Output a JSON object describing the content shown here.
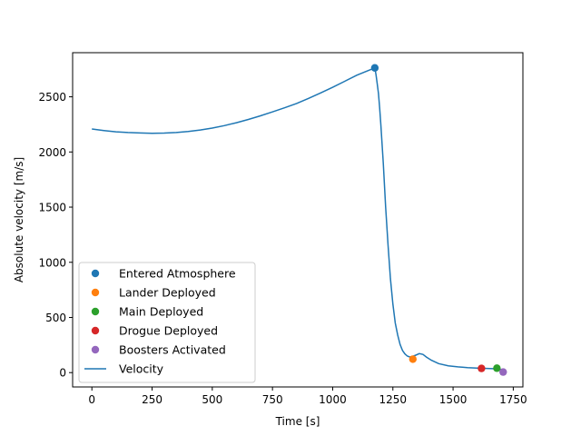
{
  "chart_data": {
    "type": "line",
    "title": "",
    "xlabel": "Time [s]",
    "ylabel": "Absolute velocity [m/s]",
    "xlim": [
      -80,
      1790
    ],
    "ylim": [
      -130,
      2900
    ],
    "xticks": [
      0,
      250,
      500,
      750,
      1000,
      1250,
      1500,
      1750
    ],
    "yticks": [
      0,
      500,
      1000,
      1500,
      2000,
      2500
    ],
    "grid": false,
    "legend_position": "lower-left",
    "series": [
      {
        "name": "Velocity",
        "type": "line",
        "color": "#1f77b4",
        "x": [
          0,
          50,
          100,
          150,
          200,
          250,
          300,
          350,
          400,
          450,
          500,
          550,
          600,
          650,
          700,
          750,
          800,
          850,
          900,
          950,
          1000,
          1050,
          1100,
          1150,
          1175,
          1180,
          1185,
          1190,
          1195,
          1200,
          1210,
          1220,
          1230,
          1240,
          1250,
          1260,
          1270,
          1280,
          1290,
          1300,
          1310,
          1320,
          1330,
          1345,
          1360,
          1375,
          1390,
          1410,
          1440,
          1480,
          1520,
          1560,
          1600,
          1640,
          1680,
          1700,
          1708
        ],
        "y": [
          2208,
          2194,
          2183,
          2176,
          2172,
          2170,
          2171,
          2176,
          2185,
          2199,
          2217,
          2239,
          2265,
          2295,
          2328,
          2363,
          2400,
          2440,
          2486,
          2535,
          2586,
          2641,
          2696,
          2740,
          2762,
          2700,
          2620,
          2530,
          2400,
          2250,
          1900,
          1500,
          1150,
          850,
          620,
          450,
          340,
          255,
          200,
          170,
          150,
          142,
          145,
          158,
          172,
          165,
          140,
          112,
          82,
          62,
          52,
          45,
          41,
          38,
          35,
          28,
          18
        ]
      },
      {
        "name": "Entered Atmosphere",
        "type": "scatter",
        "color": "#1f77b4",
        "x": [
          1175
        ],
        "y": [
          2762
        ]
      },
      {
        "name": "Lander Deployed",
        "type": "scatter",
        "color": "#ff7f0e",
        "x": [
          1333
        ],
        "y": [
          122
        ]
      },
      {
        "name": "Main Deployed",
        "type": "scatter",
        "color": "#2ca02c",
        "x": [
          1682
        ],
        "y": [
          40
        ]
      },
      {
        "name": "Drogue Deployed",
        "type": "scatter",
        "color": "#d62728",
        "x": [
          1618
        ],
        "y": [
          38
        ]
      },
      {
        "name": "Boosters Activated",
        "type": "scatter",
        "color": "#9467bd",
        "x": [
          1708
        ],
        "y": [
          5
        ]
      }
    ],
    "legend_order": [
      "Entered Atmosphere",
      "Lander Deployed",
      "Main Deployed",
      "Drogue Deployed",
      "Boosters Activated",
      "Velocity"
    ]
  }
}
